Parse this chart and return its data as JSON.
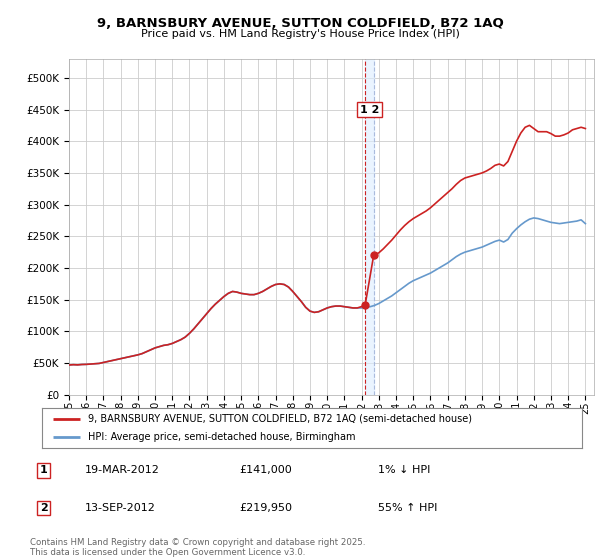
{
  "title": "9, BARNSBURY AVENUE, SUTTON COLDFIELD, B72 1AQ",
  "subtitle": "Price paid vs. HM Land Registry's House Price Index (HPI)",
  "hpi_label": "HPI: Average price, semi-detached house, Birmingham",
  "property_label": "9, BARNSBURY AVENUE, SUTTON COLDFIELD, B72 1AQ (semi-detached house)",
  "hpi_color": "#6699cc",
  "price_color": "#cc2222",
  "dashed_color_red": "#cc2222",
  "dashed_color_blue": "#aabbdd",
  "background_color": "#ffffff",
  "grid_color": "#cccccc",
  "ylim": [
    0,
    530000
  ],
  "yticks": [
    0,
    50000,
    100000,
    150000,
    200000,
    250000,
    300000,
    350000,
    400000,
    450000,
    500000
  ],
  "xlim_start": 1995,
  "xlim_end": 2025.5,
  "transactions": [
    {
      "date_num": 2012.2,
      "price": 141000,
      "label": "1"
    },
    {
      "date_num": 2012.7,
      "price": 219950,
      "label": "2"
    }
  ],
  "transaction_table": [
    {
      "num": "1",
      "date": "19-MAR-2012",
      "price": "£141,000",
      "change": "1% ↓ HPI"
    },
    {
      "num": "2",
      "date": "13-SEP-2012",
      "price": "£219,950",
      "change": "55% ↑ HPI"
    }
  ],
  "footer": "Contains HM Land Registry data © Crown copyright and database right 2025.\nThis data is licensed under the Open Government Licence v3.0.",
  "hpi_years": [
    1995,
    1995.25,
    1995.5,
    1995.75,
    1996,
    1996.25,
    1996.5,
    1996.75,
    1997,
    1997.25,
    1997.5,
    1997.75,
    1998,
    1998.25,
    1998.5,
    1998.75,
    1999,
    1999.25,
    1999.5,
    1999.75,
    2000,
    2000.25,
    2000.5,
    2000.75,
    2001,
    2001.25,
    2001.5,
    2001.75,
    2002,
    2002.25,
    2002.5,
    2002.75,
    2003,
    2003.25,
    2003.5,
    2003.75,
    2004,
    2004.25,
    2004.5,
    2004.75,
    2005,
    2005.25,
    2005.5,
    2005.75,
    2006,
    2006.25,
    2006.5,
    2006.75,
    2007,
    2007.25,
    2007.5,
    2007.75,
    2008,
    2008.25,
    2008.5,
    2008.75,
    2009,
    2009.25,
    2009.5,
    2009.75,
    2010,
    2010.25,
    2010.5,
    2010.75,
    2011,
    2011.25,
    2011.5,
    2011.75,
    2012,
    2012.25,
    2012.5,
    2012.75,
    2013,
    2013.25,
    2013.5,
    2013.75,
    2014,
    2014.25,
    2014.5,
    2014.75,
    2015,
    2015.25,
    2015.5,
    2015.75,
    2016,
    2016.25,
    2016.5,
    2016.75,
    2017,
    2017.25,
    2017.5,
    2017.75,
    2018,
    2018.25,
    2018.5,
    2018.75,
    2019,
    2019.25,
    2019.5,
    2019.75,
    2020,
    2020.25,
    2020.5,
    2020.75,
    2021,
    2021.25,
    2021.5,
    2021.75,
    2022,
    2022.25,
    2022.5,
    2022.75,
    2023,
    2023.25,
    2023.5,
    2023.75,
    2024,
    2024.25,
    2024.5,
    2024.75,
    2025
  ],
  "hpi_vals": [
    47000,
    47500,
    47200,
    47800,
    48000,
    48500,
    49000,
    49500,
    51000,
    52500,
    54000,
    55500,
    57000,
    58500,
    60000,
    61500,
    63000,
    65000,
    68000,
    71000,
    74000,
    76000,
    78000,
    79000,
    81000,
    84000,
    87000,
    91000,
    97000,
    104000,
    112000,
    120000,
    128000,
    136000,
    143000,
    149000,
    155000,
    160000,
    163000,
    162000,
    160000,
    159000,
    158000,
    158000,
    160000,
    163000,
    167000,
    171000,
    174000,
    175000,
    174000,
    170000,
    163000,
    155000,
    147000,
    138000,
    132000,
    130000,
    131000,
    134000,
    137000,
    139000,
    140000,
    140000,
    139000,
    138000,
    137000,
    137000,
    137000,
    138000,
    139000,
    141000,
    144000,
    148000,
    152000,
    156000,
    161000,
    166000,
    171000,
    176000,
    180000,
    183000,
    186000,
    189000,
    192000,
    196000,
    200000,
    204000,
    208000,
    213000,
    218000,
    222000,
    225000,
    227000,
    229000,
    231000,
    233000,
    236000,
    239000,
    242000,
    244000,
    241000,
    245000,
    255000,
    262000,
    268000,
    273000,
    277000,
    279000,
    278000,
    276000,
    274000,
    272000,
    271000,
    270000,
    271000,
    272000,
    273000,
    274000,
    276000,
    270000
  ],
  "price_years": [
    1995,
    1995.25,
    1995.5,
    1995.75,
    1996,
    1996.25,
    1996.5,
    1996.75,
    1997,
    1997.25,
    1997.5,
    1997.75,
    1998,
    1998.25,
    1998.5,
    1998.75,
    1999,
    1999.25,
    1999.5,
    1999.75,
    2000,
    2000.25,
    2000.5,
    2000.75,
    2001,
    2001.25,
    2001.5,
    2001.75,
    2002,
    2002.25,
    2002.5,
    2002.75,
    2003,
    2003.25,
    2003.5,
    2003.75,
    2004,
    2004.25,
    2004.5,
    2004.75,
    2005,
    2005.25,
    2005.5,
    2005.75,
    2006,
    2006.25,
    2006.5,
    2006.75,
    2007,
    2007.25,
    2007.5,
    2007.75,
    2008,
    2008.25,
    2008.5,
    2008.75,
    2009,
    2009.25,
    2009.5,
    2009.75,
    2010,
    2010.25,
    2010.5,
    2010.75,
    2011,
    2011.25,
    2011.5,
    2011.75,
    2012.2,
    2012.7,
    2013,
    2013.25,
    2013.5,
    2013.75,
    2014,
    2014.25,
    2014.5,
    2014.75,
    2015,
    2015.25,
    2015.5,
    2015.75,
    2016,
    2016.25,
    2016.5,
    2016.75,
    2017,
    2017.25,
    2017.5,
    2017.75,
    2018,
    2018.25,
    2018.5,
    2018.75,
    2019,
    2019.25,
    2019.5,
    2019.75,
    2020,
    2020.25,
    2020.5,
    2020.75,
    2021,
    2021.25,
    2021.5,
    2021.75,
    2022,
    2022.25,
    2022.5,
    2022.75,
    2023,
    2023.25,
    2023.5,
    2023.75,
    2024,
    2024.25,
    2024.5,
    2024.75,
    2025
  ],
  "price_vals": [
    47000,
    47500,
    47200,
    47800,
    48000,
    48500,
    49000,
    49500,
    51000,
    52500,
    54000,
    55500,
    57000,
    58500,
    60000,
    61500,
    63000,
    65000,
    68000,
    71000,
    74000,
    76000,
    78000,
    79000,
    81000,
    84000,
    87000,
    91000,
    97000,
    104000,
    112000,
    120000,
    128000,
    136000,
    143000,
    149000,
    155000,
    160000,
    163000,
    162000,
    160000,
    159000,
    158000,
    158000,
    160000,
    163000,
    167000,
    171000,
    174000,
    175000,
    174000,
    170000,
    163000,
    155000,
    147000,
    138000,
    132000,
    130000,
    131000,
    134000,
    137000,
    139000,
    140000,
    140000,
    139000,
    138000,
    137000,
    137000,
    141000,
    219950,
    224000,
    230000,
    237000,
    244000,
    252000,
    260000,
    267000,
    273000,
    278000,
    282000,
    286000,
    290000,
    295000,
    301000,
    307000,
    313000,
    319000,
    325000,
    332000,
    338000,
    342000,
    344000,
    346000,
    348000,
    350000,
    353000,
    357000,
    362000,
    364000,
    361000,
    368000,
    384000,
    400000,
    413000,
    422000,
    425000,
    420000,
    415000,
    415000,
    415000,
    412000,
    408000,
    408000,
    410000,
    413000,
    418000,
    420000,
    422000,
    420000
  ]
}
